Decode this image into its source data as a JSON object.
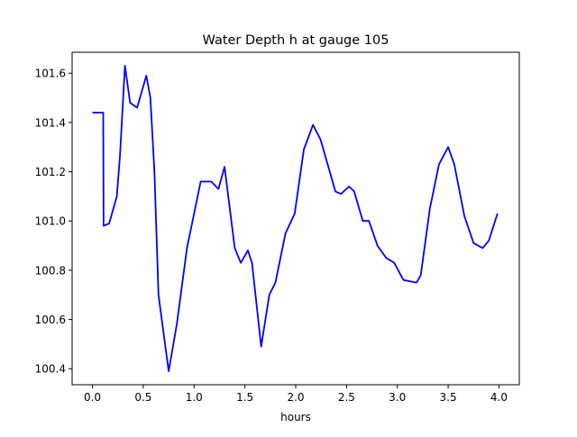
{
  "chart_data": {
    "type": "line",
    "title": "Water Depth h at gauge 105",
    "xlabel": "hours",
    "ylabel": "",
    "xlim": [
      -0.2,
      4.2
    ],
    "ylim": [
      100.335,
      101.685
    ],
    "xticks": [
      0.0,
      0.5,
      1.0,
      1.5,
      2.0,
      2.5,
      3.0,
      3.5,
      4.0
    ],
    "xtick_labels": [
      "0.0",
      "0.5",
      "1.0",
      "1.5",
      "2.0",
      "2.5",
      "3.0",
      "3.5",
      "4.0"
    ],
    "yticks": [
      100.4,
      100.6,
      100.8,
      101.0,
      101.2,
      101.4,
      101.6
    ],
    "ytick_labels": [
      "100.4",
      "100.6",
      "100.8",
      "101.0",
      "101.2",
      "101.4",
      "101.6"
    ],
    "grid": false,
    "series": [
      {
        "name": "h",
        "color": "#0000ff",
        "x": [
          0,
          0.106,
          0.11,
          0.165,
          0.24,
          0.27,
          0.32,
          0.37,
          0.44,
          0.53,
          0.57,
          0.61,
          0.65,
          0.75,
          0.83,
          0.93,
          1.065,
          1.17,
          1.24,
          1.3,
          1.4,
          1.46,
          1.53,
          1.57,
          1.66,
          1.74,
          1.8,
          1.9,
          1.99,
          2.08,
          2.17,
          2.245,
          2.39,
          2.445,
          2.525,
          2.575,
          2.66,
          2.72,
          2.805,
          2.89,
          2.97,
          3.06,
          3.19,
          3.23,
          3.32,
          3.41,
          3.5,
          3.56,
          3.66,
          3.75,
          3.84,
          3.9,
          3.985
        ],
        "y": [
          101.44,
          101.44,
          100.98,
          100.99,
          101.1,
          101.26,
          101.63,
          101.48,
          101.46,
          101.59,
          101.5,
          101.2,
          100.7,
          100.39,
          100.58,
          100.89,
          101.16,
          101.16,
          101.13,
          101.22,
          100.89,
          100.83,
          100.88,
          100.83,
          100.49,
          100.7,
          100.75,
          100.95,
          101.03,
          101.29,
          101.39,
          101.33,
          101.12,
          101.11,
          101.14,
          101.12,
          101.0,
          101.0,
          100.9,
          100.85,
          100.83,
          100.76,
          100.75,
          100.78,
          101.05,
          101.23,
          101.3,
          101.23,
          101.02,
          100.91,
          100.89,
          100.92,
          101.03
        ]
      }
    ]
  }
}
